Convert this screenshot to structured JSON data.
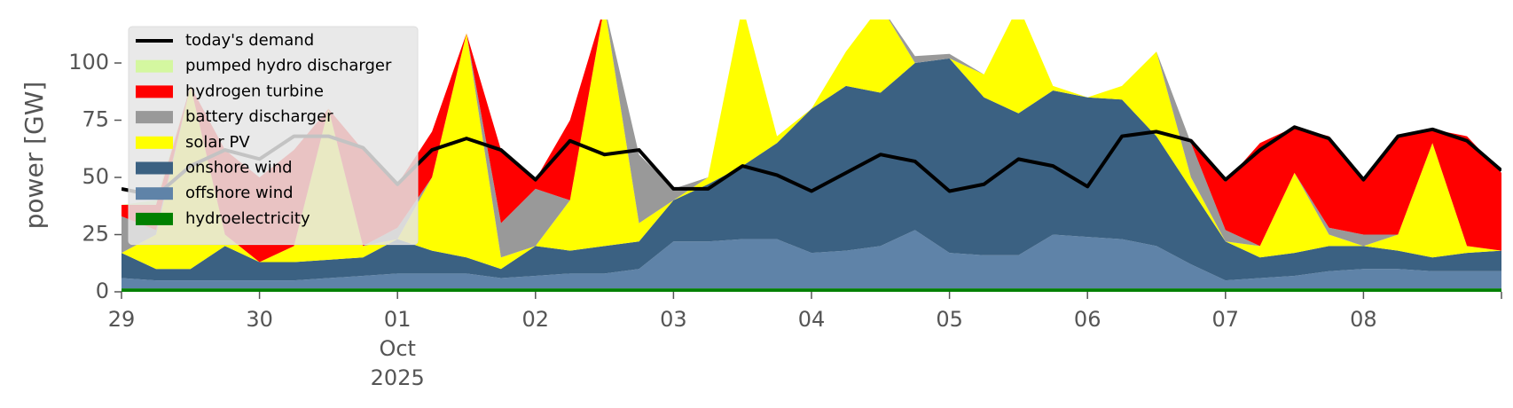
{
  "chart_data": {
    "type": "stacked-area",
    "y_label": "power [GW]",
    "x": [
      0,
      0.25,
      0.5,
      0.75,
      1,
      1.25,
      1.5,
      1.75,
      2,
      2.25,
      2.5,
      2.75,
      3,
      3.25,
      3.5,
      3.75,
      4,
      4.25,
      4.5,
      4.75,
      5,
      5.25,
      5.5,
      5.75,
      6,
      6.25,
      6.5,
      6.75,
      7,
      7.25,
      7.5,
      7.75,
      8,
      8.25,
      8.5,
      8.75,
      9,
      9.25,
      9.5,
      9.75,
      10
    ],
    "xlim": [
      0,
      10
    ],
    "xticks": [
      {
        "value": 0,
        "label": "29"
      },
      {
        "value": 1,
        "label": "30"
      },
      {
        "value": 2,
        "label": "01\nOct\n2025"
      },
      {
        "value": 3,
        "label": "02"
      },
      {
        "value": 4,
        "label": "03"
      },
      {
        "value": 5,
        "label": "04"
      },
      {
        "value": 6,
        "label": "05"
      },
      {
        "value": 7,
        "label": "06"
      },
      {
        "value": 8,
        "label": "07"
      },
      {
        "value": 9,
        "label": "08"
      }
    ],
    "ylim": [
      0,
      119
    ],
    "yticks": [
      0,
      25,
      50,
      75,
      100
    ],
    "legend": "upper left",
    "series": [
      {
        "name": "hydroelectricity",
        "color": "#008000",
        "values": [
          1.5,
          1.5,
          1.5,
          1.5,
          1.5,
          1.5,
          1.5,
          1.5,
          1.5,
          1.5,
          1.5,
          1.5,
          1.5,
          1.5,
          1.5,
          1.5,
          1.5,
          1.5,
          1.5,
          1.5,
          1.5,
          1.5,
          1.5,
          1.5,
          1.5,
          1.5,
          1.5,
          1.5,
          1.5,
          1.5,
          1.5,
          1.5,
          1.5,
          1.5,
          1.5,
          1.5,
          1.5,
          1.5,
          1.5,
          1.5,
          1.5
        ]
      },
      {
        "name": "offshore wind",
        "color": "#5f83a8",
        "values": [
          4.5,
          3.5,
          3.5,
          3.5,
          3.5,
          3.5,
          4.5,
          5.5,
          6.5,
          6.5,
          6.5,
          4.5,
          5.5,
          6.5,
          6.5,
          8.5,
          20.5,
          20.5,
          21.5,
          21.5,
          15.5,
          16.5,
          18.5,
          25.5,
          15.5,
          14.5,
          14.5,
          23.5,
          22.5,
          21.5,
          18.5,
          10.5,
          3.5,
          4.5,
          5.5,
          7.5,
          8.5,
          8.5,
          7.5,
          7.5,
          7.5
        ]
      },
      {
        "name": "onshore wind",
        "color": "#3b6182",
        "values": [
          11,
          5,
          5,
          15,
          8,
          8,
          8,
          8,
          15,
          10,
          7,
          4,
          13,
          10,
          12,
          12,
          18,
          25,
          32,
          42,
          63,
          72,
          67,
          73,
          85,
          69,
          62,
          63,
          61,
          61,
          48,
          33,
          17,
          9,
          10,
          11,
          10,
          8,
          6,
          8,
          9
        ]
      },
      {
        "name": "solar PV",
        "color": "#ffff00",
        "values": [
          0,
          15,
          80,
          5,
          0,
          7,
          66,
          5,
          0,
          32,
          98,
          5,
          0,
          22,
          105,
          8,
          0,
          3,
          70,
          3,
          0,
          15,
          38,
          0,
          0,
          10,
          47,
          2,
          0,
          6,
          37,
          5,
          0,
          5,
          35,
          5,
          0,
          7,
          50,
          3,
          0
        ]
      },
      {
        "name": "battery discharger",
        "color": "#999999",
        "values": [
          16,
          2,
          0,
          0,
          0,
          0,
          0,
          0,
          5,
          0,
          0,
          15,
          25,
          0,
          0,
          30,
          5,
          0,
          0,
          0,
          0,
          0,
          0,
          3,
          2,
          0,
          0,
          0,
          0,
          0,
          0,
          15,
          5,
          0,
          0,
          3,
          5,
          0,
          0,
          0,
          0
        ]
      },
      {
        "name": "hydrogen turbine",
        "color": "#ff0000",
        "values": [
          5,
          11,
          0,
          37,
          37,
          42,
          0,
          42,
          19,
          20,
          0,
          32,
          4,
          35,
          0,
          0,
          0,
          0,
          0,
          0,
          0,
          0,
          0,
          0,
          0,
          0,
          0,
          0,
          0,
          0,
          0,
          0,
          21,
          45,
          20,
          40,
          25,
          43,
          6,
          48,
          34
        ]
      },
      {
        "name": "pumped hydro discharger",
        "color": "#d4f7a0",
        "values": [
          0,
          2,
          0,
          0,
          0,
          0,
          0,
          0,
          0,
          0,
          0,
          0,
          0,
          0,
          0,
          0,
          0,
          0,
          0,
          0,
          0,
          0,
          0,
          0,
          0,
          0,
          0,
          0,
          0,
          0,
          0,
          0,
          0,
          0,
          0,
          0,
          0,
          0,
          0,
          0,
          0
        ]
      }
    ],
    "demand": {
      "name": "today's demand",
      "color": "#000000",
      "values": [
        45,
        42,
        55,
        62,
        58,
        68,
        68,
        63,
        47,
        62,
        67,
        62,
        49,
        66,
        60,
        62,
        45,
        45,
        55,
        51,
        44,
        52,
        60,
        57,
        44,
        47,
        58,
        55,
        46,
        68,
        70,
        66,
        49,
        62,
        72,
        67,
        49,
        68,
        71,
        66,
        53
      ]
    }
  }
}
